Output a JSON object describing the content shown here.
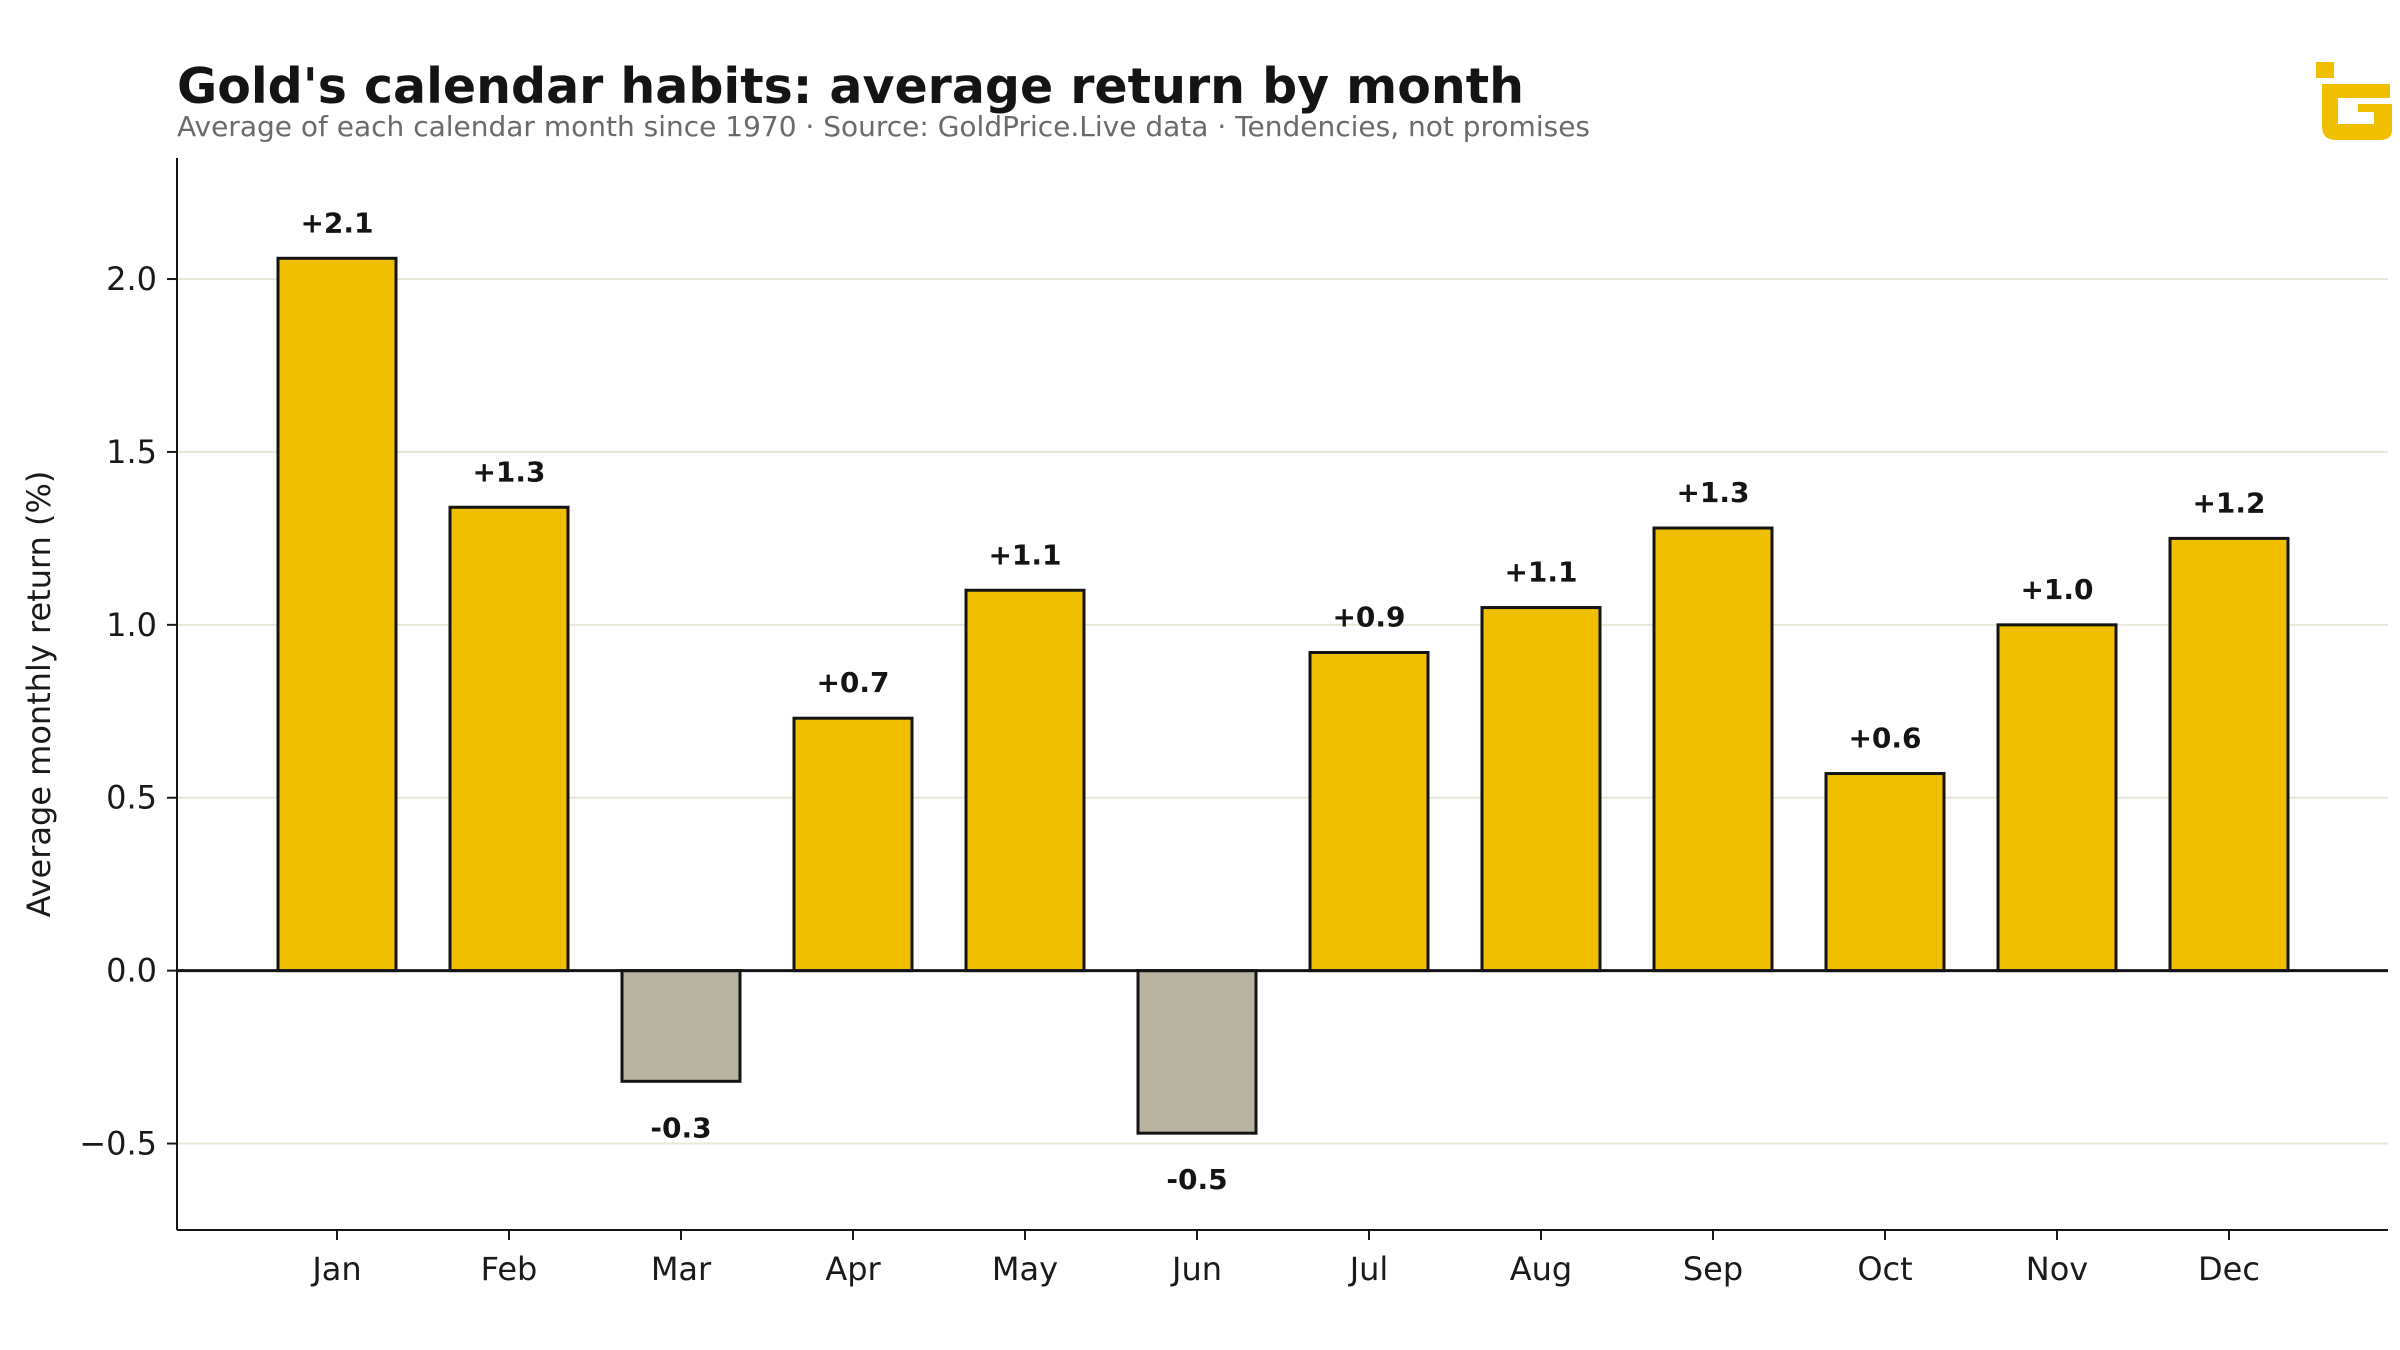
{
  "chart_data": {
    "type": "bar",
    "title": "Gold's calendar habits: average return by month",
    "subtitle": "Average of each calendar month since 1970  ·  Source: GoldPrice.Live data  ·  Tendencies, not promises",
    "xlabel": "",
    "ylabel": "Average monthly return (%)",
    "categories": [
      "Jan",
      "Feb",
      "Mar",
      "Apr",
      "May",
      "Jun",
      "Jul",
      "Aug",
      "Sep",
      "Oct",
      "Nov",
      "Dec"
    ],
    "values": [
      2.06,
      1.34,
      -0.32,
      0.73,
      1.1,
      -0.47,
      0.92,
      1.05,
      1.28,
      0.57,
      1.0,
      1.25
    ],
    "data_labels": [
      "+2.1",
      "+1.3",
      "-0.3",
      "+0.7",
      "+1.1",
      "-0.5",
      "+0.9",
      "+1.1",
      "+1.3",
      "+0.6",
      "+1.0",
      "+1.2"
    ],
    "ylim": [
      -0.75,
      2.35
    ],
    "yticks": [
      -0.5,
      0.0,
      0.5,
      1.0,
      1.5,
      2.0
    ],
    "ytick_labels": [
      "−0.5",
      "0.0",
      "0.5",
      "1.0",
      "1.5",
      "2.0"
    ],
    "grid": "horizontal",
    "colors": {
      "positive": "#f0c000",
      "negative": "#b8b2a0",
      "edge": "#141414",
      "grid": "#e6e8d8",
      "logo": "#f0c000"
    }
  },
  "logo": {
    "icon": "goldprice-live-g-icon"
  }
}
